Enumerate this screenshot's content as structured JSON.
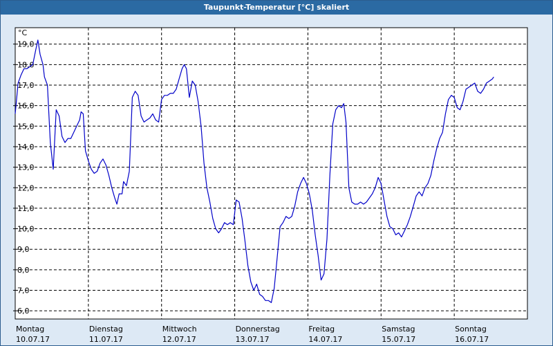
{
  "window": {
    "title": "Taupunkt-Temperatur [°C] skaliert"
  },
  "colors": {
    "background": "#dde9f5",
    "titlebar": "#2b6aa3",
    "plot_area": "#ffffff",
    "line": "#0000c8",
    "grid": "#000000"
  },
  "chart_data": {
    "type": "line",
    "title": "Taupunkt-Temperatur [°C] skaliert",
    "y_unit": "°C",
    "ylim": [
      6.0,
      19.0
    ],
    "ylim_display": [
      5.6,
      19.8
    ],
    "y_ticks": [
      6.0,
      7.0,
      8.0,
      9.0,
      10.0,
      11.0,
      12.0,
      13.0,
      14.0,
      15.0,
      16.0,
      17.0,
      18.0,
      19.0
    ],
    "y_tick_labels": [
      "6,0",
      "7,0",
      "8,0",
      "9,0",
      "10,0",
      "11,0",
      "12,0",
      "13,0",
      "14,0",
      "15,0",
      "16,0",
      "17,0",
      "18,0",
      "19,0"
    ],
    "x_range_days": 7.0,
    "x_ticks": [
      0,
      1,
      2,
      3,
      4,
      5,
      6
    ],
    "x_tick_labels": [
      {
        "day": "Montag",
        "date": "10.07.17"
      },
      {
        "day": "Dienstag",
        "date": "11.07.17"
      },
      {
        "day": "Mittwoch",
        "date": "12.07.17"
      },
      {
        "day": "Donnerstag",
        "date": "13.07.17"
      },
      {
        "day": "Freitag",
        "date": "14.07.17"
      },
      {
        "day": "Samstag",
        "date": "15.07.17"
      },
      {
        "day": "Sonntag",
        "date": "16.07.17"
      }
    ],
    "grid": true,
    "series": [
      {
        "values": [
          [
            0.0,
            15.6
          ],
          [
            0.04,
            17.1
          ],
          [
            0.08,
            17.5
          ],
          [
            0.12,
            17.8
          ],
          [
            0.16,
            17.8
          ],
          [
            0.2,
            17.9
          ],
          [
            0.24,
            18.0
          ],
          [
            0.28,
            18.7
          ],
          [
            0.31,
            19.2
          ],
          [
            0.34,
            18.5
          ],
          [
            0.38,
            18.0
          ],
          [
            0.4,
            17.4
          ],
          [
            0.44,
            17.0
          ],
          [
            0.48,
            14.2
          ],
          [
            0.52,
            12.9
          ],
          [
            0.56,
            15.8
          ],
          [
            0.6,
            15.5
          ],
          [
            0.64,
            14.5
          ],
          [
            0.68,
            14.2
          ],
          [
            0.72,
            14.4
          ],
          [
            0.76,
            14.4
          ],
          [
            0.8,
            14.7
          ],
          [
            0.84,
            15.0
          ],
          [
            0.88,
            15.3
          ],
          [
            0.9,
            15.7
          ],
          [
            0.93,
            15.6
          ],
          [
            0.96,
            13.8
          ],
          [
            1.0,
            13.3
          ],
          [
            1.04,
            12.9
          ],
          [
            1.08,
            12.7
          ],
          [
            1.12,
            12.8
          ],
          [
            1.16,
            13.2
          ],
          [
            1.2,
            13.4
          ],
          [
            1.24,
            13.1
          ],
          [
            1.28,
            12.6
          ],
          [
            1.32,
            12.0
          ],
          [
            1.36,
            11.5
          ],
          [
            1.39,
            11.2
          ],
          [
            1.42,
            11.7
          ],
          [
            1.46,
            11.7
          ],
          [
            1.48,
            12.3
          ],
          [
            1.52,
            12.1
          ],
          [
            1.56,
            12.8
          ],
          [
            1.6,
            16.4
          ],
          [
            1.64,
            16.7
          ],
          [
            1.68,
            16.5
          ],
          [
            1.72,
            15.5
          ],
          [
            1.76,
            15.2
          ],
          [
            1.8,
            15.3
          ],
          [
            1.84,
            15.4
          ],
          [
            1.88,
            15.6
          ],
          [
            1.92,
            15.3
          ],
          [
            1.96,
            15.2
          ],
          [
            2.0,
            16.3
          ],
          [
            2.04,
            16.5
          ],
          [
            2.08,
            16.5
          ],
          [
            2.12,
            16.6
          ],
          [
            2.16,
            16.6
          ],
          [
            2.2,
            16.8
          ],
          [
            2.24,
            17.3
          ],
          [
            2.28,
            17.8
          ],
          [
            2.31,
            18.0
          ],
          [
            2.34,
            17.8
          ],
          [
            2.38,
            16.4
          ],
          [
            2.42,
            17.2
          ],
          [
            2.46,
            17.0
          ],
          [
            2.5,
            16.2
          ],
          [
            2.54,
            15.0
          ],
          [
            2.58,
            13.2
          ],
          [
            2.62,
            12.0
          ],
          [
            2.66,
            11.3
          ],
          [
            2.7,
            10.5
          ],
          [
            2.74,
            10.0
          ],
          [
            2.78,
            9.8
          ],
          [
            2.82,
            10.0
          ],
          [
            2.86,
            10.3
          ],
          [
            2.9,
            10.2
          ],
          [
            2.94,
            10.3
          ],
          [
            2.98,
            10.2
          ],
          [
            3.02,
            11.4
          ],
          [
            3.06,
            11.3
          ],
          [
            3.1,
            10.5
          ],
          [
            3.14,
            9.4
          ],
          [
            3.18,
            8.2
          ],
          [
            3.22,
            7.4
          ],
          [
            3.26,
            7.0
          ],
          [
            3.3,
            7.3
          ],
          [
            3.34,
            6.8
          ],
          [
            3.38,
            6.7
          ],
          [
            3.42,
            6.5
          ],
          [
            3.46,
            6.5
          ],
          [
            3.5,
            6.4
          ],
          [
            3.54,
            7.1
          ],
          [
            3.58,
            8.6
          ],
          [
            3.62,
            10.1
          ],
          [
            3.66,
            10.3
          ],
          [
            3.7,
            10.6
          ],
          [
            3.74,
            10.5
          ],
          [
            3.78,
            10.6
          ],
          [
            3.82,
            11.1
          ],
          [
            3.86,
            11.8
          ],
          [
            3.9,
            12.2
          ],
          [
            3.94,
            12.5
          ],
          [
            3.98,
            12.2
          ],
          [
            4.02,
            11.7
          ],
          [
            4.06,
            10.9
          ],
          [
            4.1,
            9.7
          ],
          [
            4.14,
            8.7
          ],
          [
            4.18,
            7.5
          ],
          [
            4.22,
            7.8
          ],
          [
            4.26,
            9.5
          ],
          [
            4.3,
            12.6
          ],
          [
            4.34,
            15.1
          ],
          [
            4.38,
            15.8
          ],
          [
            4.42,
            16.0
          ],
          [
            4.46,
            15.9
          ],
          [
            4.49,
            16.1
          ],
          [
            4.52,
            15.2
          ],
          [
            4.56,
            12.0
          ],
          [
            4.6,
            11.3
          ],
          [
            4.64,
            11.2
          ],
          [
            4.68,
            11.2
          ],
          [
            4.72,
            11.3
          ],
          [
            4.76,
            11.2
          ],
          [
            4.8,
            11.3
          ],
          [
            4.84,
            11.5
          ],
          [
            4.88,
            11.7
          ],
          [
            4.92,
            12.0
          ],
          [
            4.96,
            12.5
          ],
          [
            5.0,
            12.2
          ],
          [
            5.04,
            11.4
          ],
          [
            5.08,
            10.6
          ],
          [
            5.12,
            10.1
          ],
          [
            5.16,
            10.0
          ],
          [
            5.2,
            9.7
          ],
          [
            5.24,
            9.8
          ],
          [
            5.28,
            9.6
          ],
          [
            5.32,
            9.9
          ],
          [
            5.36,
            10.2
          ],
          [
            5.4,
            10.6
          ],
          [
            5.44,
            11.1
          ],
          [
            5.48,
            11.6
          ],
          [
            5.52,
            11.8
          ],
          [
            5.56,
            11.6
          ],
          [
            5.6,
            12.0
          ],
          [
            5.64,
            12.2
          ],
          [
            5.68,
            12.6
          ],
          [
            5.72,
            13.3
          ],
          [
            5.76,
            13.9
          ],
          [
            5.8,
            14.4
          ],
          [
            5.84,
            14.7
          ],
          [
            5.88,
            15.6
          ],
          [
            5.92,
            16.3
          ],
          [
            5.96,
            16.5
          ],
          [
            6.0,
            16.4
          ],
          [
            6.04,
            15.9
          ],
          [
            6.08,
            15.8
          ],
          [
            6.12,
            16.2
          ],
          [
            6.16,
            16.8
          ],
          [
            6.2,
            16.9
          ],
          [
            6.24,
            17.0
          ],
          [
            6.28,
            17.1
          ],
          [
            6.32,
            16.7
          ],
          [
            6.36,
            16.6
          ],
          [
            6.4,
            16.8
          ],
          [
            6.44,
            17.1
          ],
          [
            6.48,
            17.2
          ],
          [
            6.52,
            17.3
          ],
          [
            6.54,
            17.4
          ]
        ]
      }
    ]
  }
}
